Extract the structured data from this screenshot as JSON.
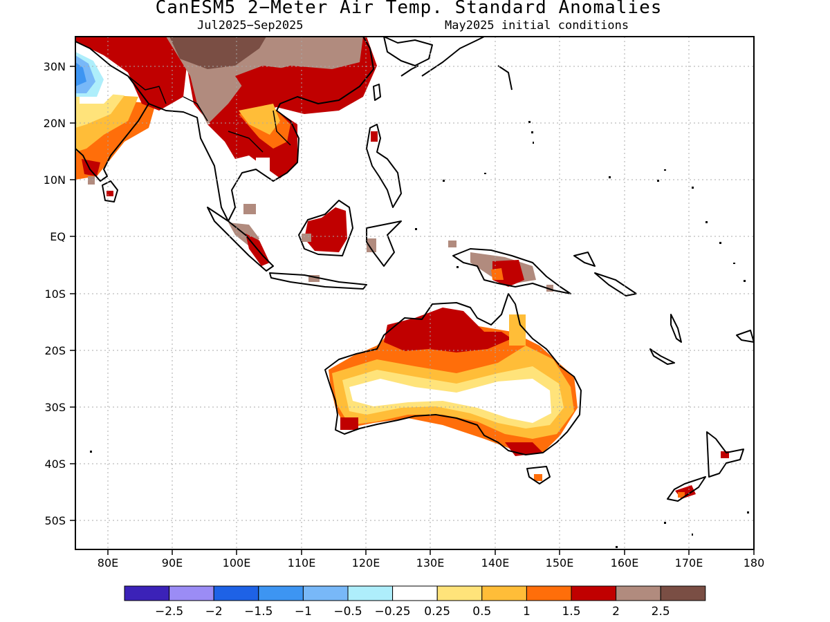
{
  "title": "CanESM5 2−Meter Air Temp. Standard Anomalies",
  "subtitle_left": "Jul2025−Sep2025",
  "subtitle_right": "May2025 initial conditions",
  "lat_labels": [
    "30N",
    "20N",
    "10N",
    "EQ",
    "10S",
    "20S",
    "30S",
    "40S",
    "50S"
  ],
  "lon_labels": [
    "80E",
    "90E",
    "100E",
    "110E",
    "120E",
    "130E",
    "140E",
    "150E",
    "160E",
    "170E",
    "180"
  ],
  "colorbar": {
    "colors": [
      "#3b22b8",
      "#9b8cf5",
      "#1e62e6",
      "#3d95f2",
      "#78b8f8",
      "#aeeefb",
      "#ffffff",
      "#ffe37a",
      "#ffbd38",
      "#ff6e0a",
      "#c00000",
      "#b18b7e",
      "#7a4e44"
    ],
    "labels": [
      "−2.5",
      "−2",
      "−1.5",
      "−1",
      "−0.5",
      "−0.25",
      "0.25",
      "0.5",
      "1",
      "1.5",
      "2",
      "2.5"
    ]
  }
}
